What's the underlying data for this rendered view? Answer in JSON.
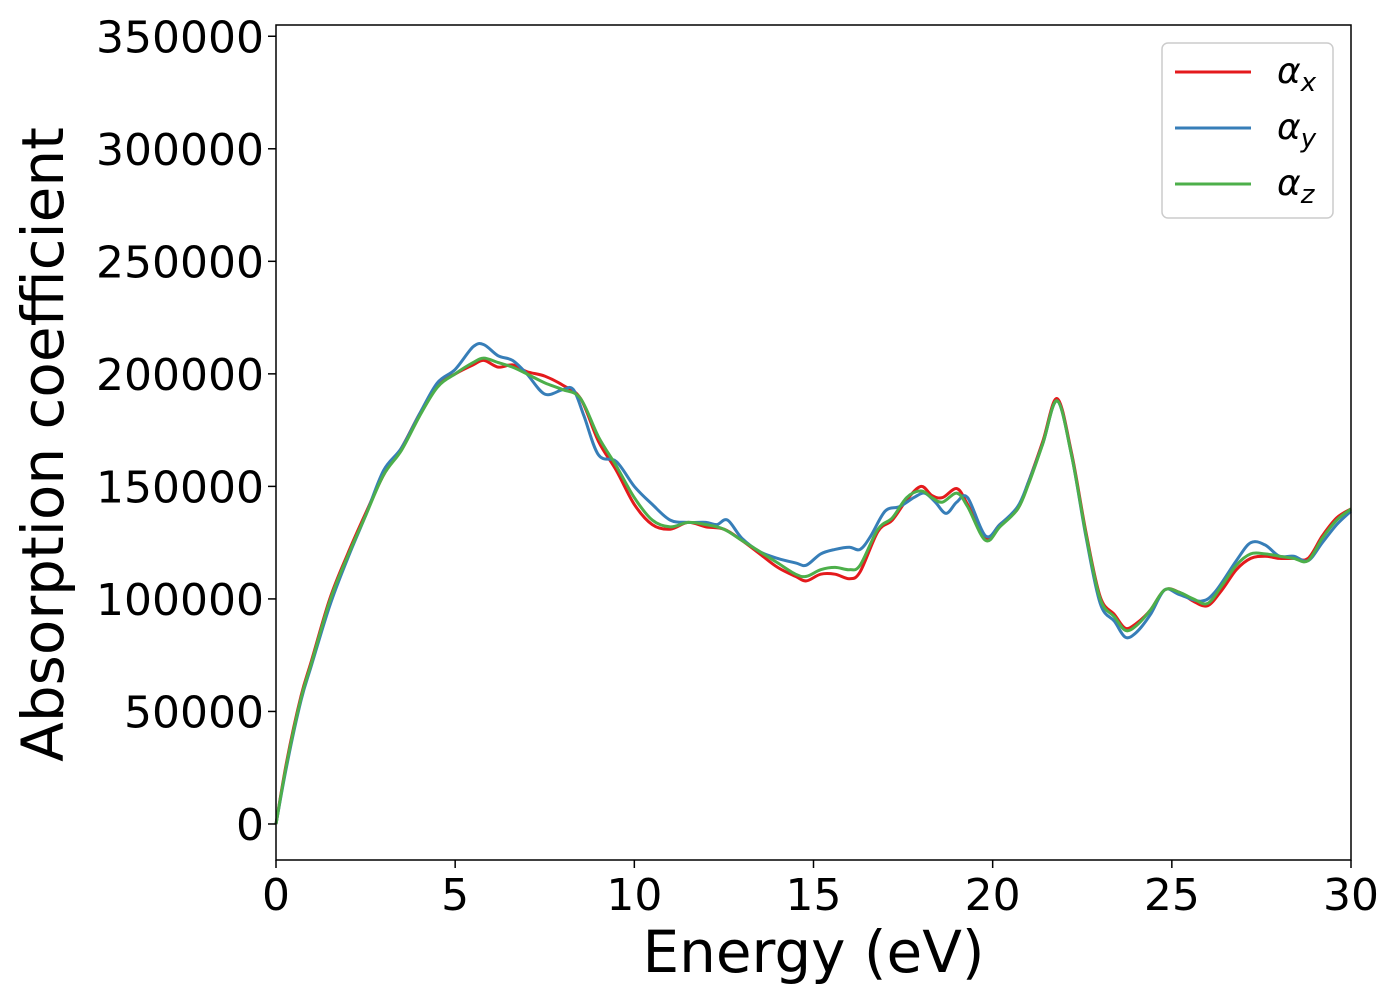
{
  "chart_data": {
    "type": "line",
    "title": "",
    "xlabel": "Energy (eV)",
    "ylabel": "Absorption coefficient",
    "xlim": [
      0,
      30
    ],
    "ylim": [
      -16000,
      355000
    ],
    "xticks": [
      0,
      5,
      10,
      15,
      20,
      25,
      30
    ],
    "yticks": [
      0,
      50000,
      100000,
      150000,
      200000,
      250000,
      300000,
      350000
    ],
    "grid": false,
    "legend_position": "top-right",
    "series": [
      {
        "name": "αx",
        "label_base": "α",
        "label_sub": "x",
        "color": "#e41a1c",
        "x": [
          0,
          0.3,
          0.7,
          1.0,
          1.5,
          2.0,
          2.5,
          3.0,
          3.5,
          4.0,
          4.5,
          5.0,
          5.5,
          5.8,
          6.2,
          6.6,
          7.0,
          7.5,
          8.0,
          8.5,
          9.0,
          9.5,
          10.0,
          10.5,
          11.0,
          11.5,
          12.0,
          12.5,
          13.0,
          13.5,
          14.0,
          14.5,
          14.8,
          15.2,
          15.6,
          16.0,
          16.3,
          16.8,
          17.2,
          17.6,
          18.0,
          18.3,
          18.6,
          19.0,
          19.3,
          19.8,
          20.2,
          20.7,
          21.0,
          21.4,
          21.8,
          22.2,
          22.6,
          23.0,
          23.4,
          23.7,
          24.0,
          24.4,
          24.8,
          25.2,
          25.6,
          26.0,
          26.4,
          26.8,
          27.2,
          27.6,
          28.0,
          28.4,
          28.8,
          29.2,
          29.6,
          30.0
        ],
        "values": [
          0,
          28000,
          57000,
          73000,
          100000,
          120000,
          138000,
          155000,
          167000,
          182000,
          195000,
          200000,
          204000,
          206000,
          203000,
          204000,
          201000,
          199000,
          195000,
          189000,
          170000,
          157000,
          142000,
          133000,
          131000,
          134000,
          132000,
          131000,
          126000,
          120000,
          114000,
          110000,
          108000,
          111000,
          111000,
          109000,
          112000,
          130000,
          135000,
          144000,
          150000,
          146000,
          145000,
          149000,
          142000,
          127000,
          133000,
          140000,
          152000,
          170000,
          189000,
          165000,
          130000,
          101000,
          93000,
          87000,
          89000,
          95000,
          104000,
          103000,
          99000,
          97000,
          104000,
          113000,
          118000,
          119000,
          118000,
          118000,
          118000,
          128000,
          136000,
          140000
        ]
      },
      {
        "name": "αy",
        "label_base": "α",
        "label_sub": "y",
        "color": "#377eb8",
        "x": [
          0,
          0.3,
          0.7,
          1.0,
          1.5,
          2.0,
          2.5,
          3.0,
          3.5,
          4.0,
          4.5,
          5.0,
          5.5,
          5.8,
          6.2,
          6.6,
          7.0,
          7.5,
          8.0,
          8.3,
          8.6,
          9.0,
          9.5,
          10.0,
          10.5,
          11.0,
          11.5,
          12.0,
          12.3,
          12.6,
          13.0,
          13.5,
          14.0,
          14.5,
          14.8,
          15.2,
          15.6,
          16.0,
          16.3,
          16.6,
          17.0,
          17.4,
          17.8,
          18.1,
          18.4,
          18.7,
          19.0,
          19.3,
          19.8,
          20.2,
          20.7,
          21.0,
          21.4,
          21.8,
          22.2,
          22.6,
          23.0,
          23.4,
          23.7,
          24.0,
          24.4,
          24.8,
          25.2,
          25.8,
          26.2,
          26.8,
          27.2,
          27.6,
          28.0,
          28.4,
          28.8,
          29.2,
          29.6,
          30.0
        ],
        "values": [
          0,
          26000,
          55000,
          71000,
          97000,
          118000,
          137000,
          157000,
          167000,
          182000,
          196000,
          202000,
          212000,
          213000,
          208000,
          206000,
          200000,
          191000,
          193000,
          193000,
          181000,
          164000,
          161000,
          150000,
          142000,
          135000,
          134000,
          134000,
          133000,
          135000,
          127000,
          121000,
          118000,
          116000,
          115000,
          120000,
          122000,
          123000,
          122000,
          128000,
          139000,
          141000,
          145000,
          147000,
          143000,
          138000,
          143000,
          145000,
          128000,
          133000,
          141000,
          152000,
          169000,
          188000,
          164000,
          128000,
          98000,
          90000,
          83000,
          85000,
          93000,
          104000,
          102000,
          99000,
          103000,
          117000,
          125000,
          124000,
          119000,
          119000,
          117000,
          125000,
          133000,
          139000
        ]
      },
      {
        "name": "αz",
        "label_base": "α",
        "label_sub": "z",
        "color": "#4daf4a",
        "x": [
          0,
          0.3,
          0.7,
          1.0,
          1.5,
          2.0,
          2.5,
          3.0,
          3.5,
          4.0,
          4.5,
          5.0,
          5.5,
          5.8,
          6.2,
          6.6,
          7.0,
          7.5,
          8.0,
          8.5,
          9.0,
          9.5,
          10.0,
          10.5,
          11.0,
          11.5,
          12.0,
          12.5,
          13.0,
          13.5,
          14.0,
          14.5,
          14.8,
          15.2,
          15.6,
          16.0,
          16.3,
          16.8,
          17.2,
          17.6,
          18.0,
          18.3,
          18.6,
          19.0,
          19.3,
          19.8,
          20.2,
          20.7,
          21.0,
          21.4,
          21.8,
          22.2,
          22.6,
          23.0,
          23.4,
          23.7,
          24.0,
          24.4,
          24.8,
          25.2,
          25.6,
          26.0,
          26.4,
          26.8,
          27.2,
          27.6,
          28.0,
          28.4,
          28.8,
          29.2,
          29.6,
          30.0
        ],
        "values": [
          0,
          27000,
          56000,
          72000,
          99000,
          119000,
          137000,
          155000,
          166000,
          181000,
          194000,
          200000,
          205000,
          207000,
          205000,
          203000,
          200000,
          196000,
          193000,
          189000,
          172000,
          159000,
          145000,
          135000,
          132000,
          134000,
          133000,
          131000,
          126000,
          121000,
          116000,
          111000,
          110000,
          113000,
          114000,
          113000,
          115000,
          131000,
          136000,
          145000,
          148000,
          145000,
          143000,
          147000,
          141000,
          126000,
          132000,
          140000,
          151000,
          169000,
          188000,
          164000,
          129000,
          100000,
          92000,
          86000,
          88000,
          95000,
          104000,
          103000,
          100000,
          98000,
          106000,
          115000,
          120000,
          120000,
          119000,
          118000,
          117000,
          127000,
          135000,
          140000
        ]
      }
    ]
  }
}
